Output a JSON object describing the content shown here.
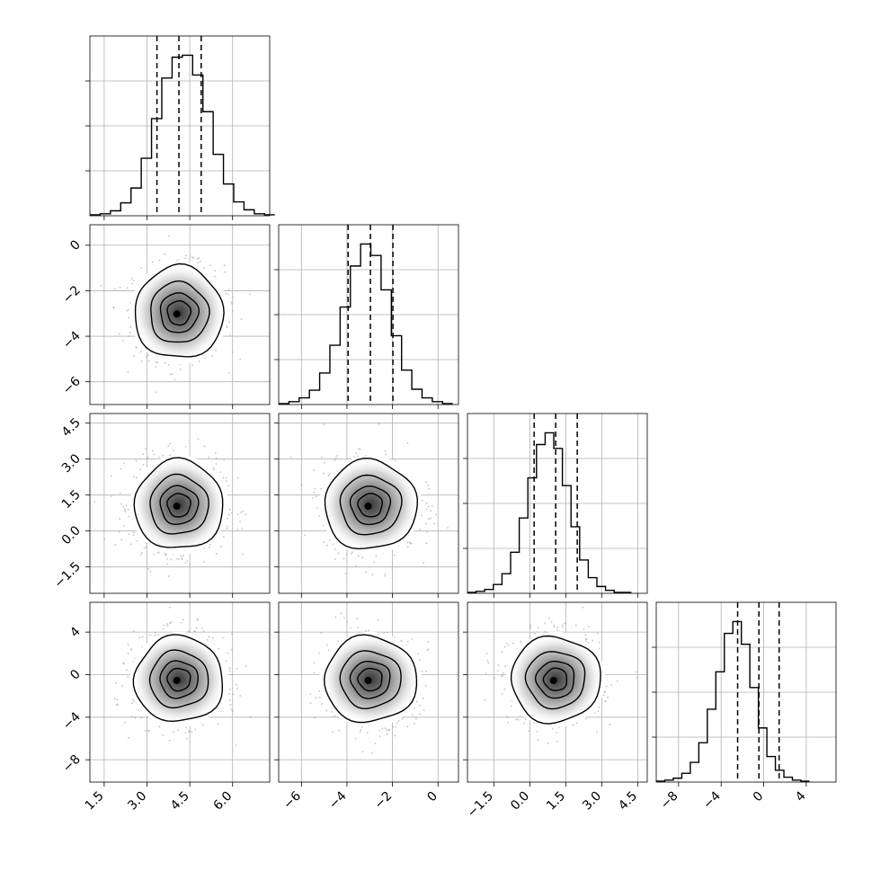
{
  "chart_data": {
    "type": "corner",
    "parameters": [
      {
        "range": [
          1.0,
          7.3
        ],
        "ticks": [
          1.5,
          3.0,
          4.5,
          6.0
        ],
        "tick_labels": [
          "1.5",
          "3.0",
          "4.5",
          "6.0"
        ],
        "quantiles": [
          3.35,
          4.12,
          4.9
        ],
        "mean": 4.12,
        "sd": 0.75
      },
      {
        "range": [
          -7.0,
          0.9
        ],
        "ticks": [
          -6,
          -4,
          -2,
          0
        ],
        "tick_labels": [
          "−6",
          "−4",
          "−2",
          "0"
        ],
        "quantiles": [
          -3.95,
          -2.97,
          -1.98
        ],
        "mean": -2.97,
        "sd": 0.98
      },
      {
        "range": [
          -2.6,
          4.9
        ],
        "ticks": [
          -1.5,
          0.0,
          1.5,
          3.0,
          4.5
        ],
        "tick_labels": [
          "−1.5",
          "0.0",
          "1.5",
          "3.0",
          "4.5"
        ],
        "quantiles": [
          0.18,
          1.08,
          1.98
        ],
        "mean": 1.08,
        "sd": 0.9
      },
      {
        "range": [
          -10.1,
          6.8
        ],
        "ticks": [
          -8,
          -4,
          0,
          4
        ],
        "tick_labels": [
          "−8",
          "−4",
          "0",
          "4"
        ],
        "quantiles": [
          -2.45,
          -0.45,
          1.45
        ],
        "mean": -0.45,
        "sd": 1.95
      }
    ],
    "histograms": [
      {
        "param": 0,
        "edges_start": 1.0,
        "bin_width": 0.36,
        "counts": [
          1,
          2,
          5,
          13,
          28,
          58,
          98,
          139,
          160,
          162,
          142,
          105,
          62,
          32,
          14,
          6,
          2,
          1
        ]
      },
      {
        "param": 1,
        "edges_start": -7.0,
        "bin_width": 0.45,
        "counts": [
          1,
          3,
          7,
          15,
          33,
          62,
          102,
          145,
          168,
          156,
          120,
          72,
          36,
          16,
          7,
          3,
          1
        ]
      },
      {
        "param": 2,
        "edges_start": -2.6,
        "bin_width": 0.36,
        "counts": [
          1,
          2,
          4,
          9,
          20,
          42,
          77,
          118,
          152,
          164,
          148,
          110,
          68,
          34,
          16,
          7,
          3,
          1,
          1
        ]
      },
      {
        "param": 3,
        "edges_start": -10.1,
        "bin_width": 0.8,
        "counts": [
          1,
          2,
          4,
          9,
          20,
          40,
          74,
          112,
          151,
          163,
          140,
          96,
          55,
          26,
          12,
          5,
          2,
          1
        ]
      }
    ],
    "pairs": [
      {
        "x": 0,
        "y": 1
      },
      {
        "x": 0,
        "y": 2
      },
      {
        "x": 1,
        "y": 2
      },
      {
        "x": 0,
        "y": 3
      },
      {
        "x": 1,
        "y": 3
      },
      {
        "x": 2,
        "y": 3
      }
    ],
    "contour_levels_sigma": [
      0.5,
      1.0,
      1.5,
      2.0
    ],
    "grid": true
  }
}
